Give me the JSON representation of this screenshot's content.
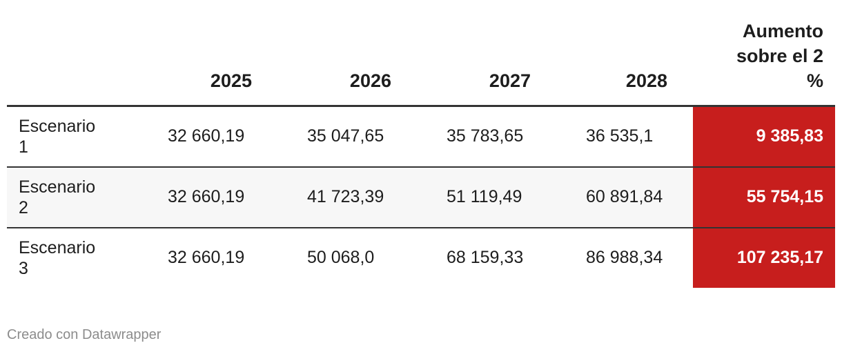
{
  "table": {
    "header": [
      "",
      "2025",
      "2026",
      "2027",
      "2028",
      "Aumento sobre el 2 %"
    ],
    "rows": [
      [
        "Escenario 1",
        "32 660,19",
        "35 047,65",
        "35 783,65",
        "36 535,1",
        "9 385,83"
      ],
      [
        "Escenario 2",
        "32 660,19",
        "41 723,39",
        "51 119,49",
        "60 891,84",
        "55 754,15"
      ],
      [
        "Escenario 3",
        "32 660,19",
        "50 068,0",
        "68 159,33",
        "86 988,34",
        "107 235,17"
      ]
    ]
  },
  "footer": "Creado con Datawrapper"
}
